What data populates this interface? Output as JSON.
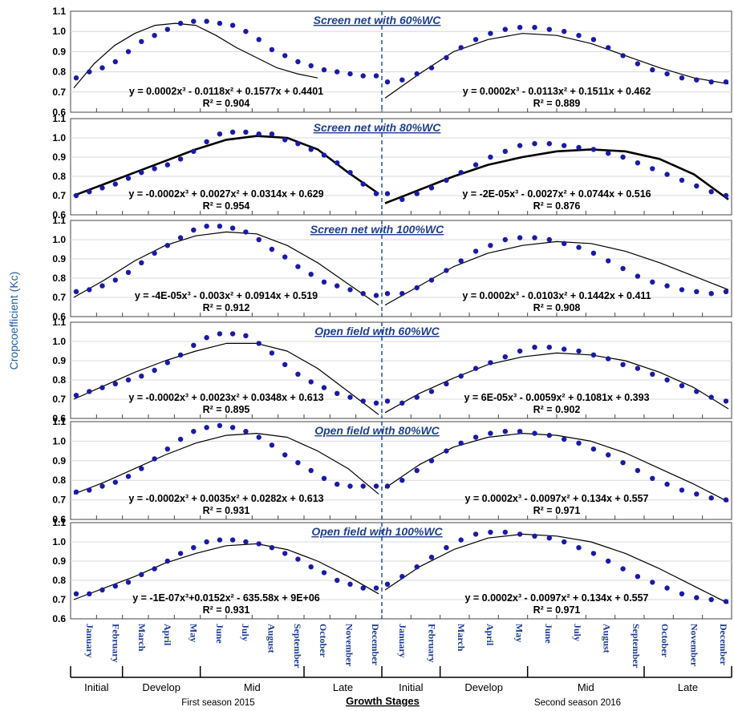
{
  "y_axis_title": "Cropcoefficient (Kc)",
  "x_axis_title": "Growth Stages",
  "season_labels": [
    "First season 2015",
    "Second season 2016"
  ],
  "months": [
    "January",
    "February",
    "March",
    "April",
    "May",
    "June",
    "July",
    "August",
    "September",
    "October",
    "November",
    "December"
  ],
  "stages": [
    {
      "label": "Initial",
      "m0": 0,
      "m1": 2
    },
    {
      "label": "Develop",
      "m0": 2,
      "m1": 5
    },
    {
      "label": "Mid",
      "m0": 5,
      "m1": 9
    },
    {
      "label": "Late",
      "m0": 9,
      "m1": 12
    },
    {
      "label": "Initial",
      "m0": 12,
      "m1": 14
    },
    {
      "label": "Develop",
      "m0": 14,
      "m1": 17
    },
    {
      "label": "Mid",
      "m0": 17,
      "m1": 21
    },
    {
      "label": "Late",
      "m0": 21,
      "m1": 24
    }
  ],
  "colors": {
    "points": "#1a1aa6",
    "axis_title": "#1f5fa8",
    "panel_title": "#1f3f8f",
    "divider": "#2a5db0"
  },
  "chart_data": [
    {
      "type": "scatter",
      "title": "Screen net with 60%WC",
      "ylim": [
        0.6,
        1.1
      ],
      "yticks": [
        0.6,
        0.7,
        0.8,
        0.9,
        1.0,
        1.1
      ],
      "trend_width": 1.2,
      "season1": {
        "points": [
          0.77,
          0.8,
          0.82,
          0.85,
          0.9,
          0.95,
          0.98,
          1.01,
          1.04,
          1.05,
          1.05,
          1.04,
          1.03,
          1.0,
          0.96,
          0.91,
          0.88,
          0.85,
          0.83,
          0.81,
          0.8,
          0.79,
          0.78,
          0.78
        ],
        "trend": [
          [
            0,
            0.72
          ],
          [
            2,
            0.84
          ],
          [
            4,
            0.93
          ],
          [
            6,
            0.99
          ],
          [
            8,
            1.03
          ],
          [
            10,
            1.04
          ],
          [
            12,
            1.03
          ],
          [
            14,
            0.98
          ],
          [
            16,
            0.92
          ],
          [
            18,
            0.87
          ],
          [
            20,
            0.82
          ],
          [
            22,
            0.79
          ],
          [
            24,
            0.77
          ]
        ],
        "equation": "y = 0.0002x³ - 0.0118x² + 0.1577x + 0.4401",
        "r2": "R² = 0.904"
      },
      "season2": {
        "points": [
          0.75,
          0.76,
          0.79,
          0.82,
          0.87,
          0.92,
          0.96,
          0.99,
          1.01,
          1.02,
          1.02,
          1.01,
          1.0,
          0.98,
          0.96,
          0.92,
          0.88,
          0.84,
          0.81,
          0.79,
          0.77,
          0.76,
          0.75,
          0.75
        ],
        "trend": [
          [
            0,
            0.67
          ],
          [
            3,
            0.79
          ],
          [
            6,
            0.9
          ],
          [
            9,
            0.96
          ],
          [
            12,
            0.99
          ],
          [
            15,
            0.98
          ],
          [
            18,
            0.94
          ],
          [
            21,
            0.88
          ],
          [
            24,
            0.82
          ],
          [
            27,
            0.77
          ],
          [
            30,
            0.74
          ]
        ],
        "equation": "y = 0.0002x³ - 0.0113x² + 0.1511x + 0.462",
        "r2": "R² = 0.889"
      }
    },
    {
      "type": "scatter",
      "title": "Screen net with 80%WC",
      "ylim": [
        0.6,
        1.1
      ],
      "yticks": [
        0.6,
        0.7,
        0.8,
        0.9,
        1.0,
        1.1
      ],
      "trend_width": 2.6,
      "season1": {
        "points": [
          0.7,
          0.72,
          0.74,
          0.76,
          0.79,
          0.82,
          0.84,
          0.86,
          0.89,
          0.93,
          0.98,
          1.02,
          1.03,
          1.03,
          1.02,
          1.02,
          0.99,
          0.97,
          0.94,
          0.91,
          0.87,
          0.82,
          0.76,
          0.71
        ],
        "trend": [
          [
            0,
            0.7
          ],
          [
            3,
            0.76
          ],
          [
            6,
            0.82
          ],
          [
            9,
            0.88
          ],
          [
            12,
            0.94
          ],
          [
            15,
            0.99
          ],
          [
            18,
            1.01
          ],
          [
            21,
            1.0
          ],
          [
            24,
            0.94
          ],
          [
            27,
            0.82
          ],
          [
            30,
            0.71
          ]
        ],
        "equation": "y = -0.0002x³ + 0.0027x² + 0.0314x + 0.629",
        "r2": "R² = 0.954"
      },
      "season2": {
        "points": [
          0.71,
          0.68,
          0.71,
          0.74,
          0.78,
          0.82,
          0.86,
          0.9,
          0.93,
          0.96,
          0.97,
          0.97,
          0.96,
          0.95,
          0.94,
          0.92,
          0.9,
          0.87,
          0.84,
          0.81,
          0.78,
          0.75,
          0.72,
          0.7
        ],
        "trend": [
          [
            0,
            0.66
          ],
          [
            3,
            0.73
          ],
          [
            6,
            0.8
          ],
          [
            9,
            0.86
          ],
          [
            12,
            0.9
          ],
          [
            15,
            0.93
          ],
          [
            18,
            0.94
          ],
          [
            21,
            0.93
          ],
          [
            24,
            0.89
          ],
          [
            27,
            0.81
          ],
          [
            30,
            0.68
          ]
        ],
        "equation": "y = -2E-05x³ - 0.0027x² + 0.0744x + 0.516",
        "r2": "R² = 0.876"
      }
    },
    {
      "type": "scatter",
      "title": "Screen net with 100%WC",
      "ylim": [
        0.6,
        1.1
      ],
      "yticks": [
        0.6,
        0.7,
        0.8,
        0.9,
        1.0,
        1.1
      ],
      "trend_width": 1.2,
      "season1": {
        "points": [
          0.73,
          0.74,
          0.76,
          0.79,
          0.83,
          0.88,
          0.93,
          0.97,
          1.01,
          1.05,
          1.07,
          1.07,
          1.06,
          1.04,
          1.0,
          0.95,
          0.91,
          0.86,
          0.82,
          0.78,
          0.76,
          0.74,
          0.72,
          0.71
        ],
        "trend": [
          [
            0,
            0.7
          ],
          [
            3,
            0.79
          ],
          [
            6,
            0.89
          ],
          [
            9,
            0.97
          ],
          [
            12,
            1.02
          ],
          [
            15,
            1.04
          ],
          [
            18,
            1.03
          ],
          [
            21,
            0.97
          ],
          [
            24,
            0.88
          ],
          [
            27,
            0.77
          ],
          [
            30,
            0.66
          ]
        ],
        "equation": "y = -4E-05x³ - 0.003x² + 0.0914x + 0.519",
        "r2": "R² = 0.912"
      },
      "season2": {
        "points": [
          0.72,
          0.72,
          0.75,
          0.79,
          0.84,
          0.89,
          0.94,
          0.97,
          1.0,
          1.01,
          1.01,
          1.0,
          0.98,
          0.96,
          0.93,
          0.89,
          0.85,
          0.81,
          0.78,
          0.76,
          0.74,
          0.73,
          0.72,
          0.73
        ],
        "trend": [
          [
            0,
            0.66
          ],
          [
            3,
            0.76
          ],
          [
            6,
            0.86
          ],
          [
            9,
            0.93
          ],
          [
            12,
            0.97
          ],
          [
            15,
            0.99
          ],
          [
            18,
            0.98
          ],
          [
            21,
            0.94
          ],
          [
            24,
            0.88
          ],
          [
            27,
            0.81
          ],
          [
            30,
            0.74
          ]
        ],
        "equation": "y = 0.0002x³ - 0.0103x² + 0.1442x + 0.411",
        "r2": "R² = 0.908"
      }
    },
    {
      "type": "scatter",
      "title": "Open field with 60%WC",
      "ylim": [
        0.6,
        1.1
      ],
      "yticks": [
        0.6,
        0.7,
        0.8,
        0.9,
        1.0,
        1.1
      ],
      "trend_width": 1.2,
      "season1": {
        "points": [
          0.72,
          0.74,
          0.76,
          0.78,
          0.8,
          0.82,
          0.85,
          0.89,
          0.93,
          0.98,
          1.02,
          1.04,
          1.04,
          1.03,
          0.99,
          0.94,
          0.88,
          0.83,
          0.79,
          0.76,
          0.73,
          0.71,
          0.69,
          0.68
        ],
        "trend": [
          [
            0,
            0.7
          ],
          [
            3,
            0.77
          ],
          [
            6,
            0.84
          ],
          [
            9,
            0.9
          ],
          [
            12,
            0.95
          ],
          [
            15,
            0.99
          ],
          [
            18,
            0.99
          ],
          [
            21,
            0.95
          ],
          [
            24,
            0.86
          ],
          [
            27,
            0.74
          ],
          [
            30,
            0.62
          ]
        ],
        "equation": "y = -0.0002x³ + 0.0023x² + 0.0348x + 0.613",
        "r2": "R² = 0.895"
      },
      "season2": {
        "points": [
          0.69,
          0.68,
          0.71,
          0.74,
          0.78,
          0.82,
          0.86,
          0.89,
          0.92,
          0.95,
          0.97,
          0.97,
          0.96,
          0.95,
          0.93,
          0.91,
          0.88,
          0.86,
          0.83,
          0.8,
          0.77,
          0.74,
          0.71,
          0.69
        ],
        "trend": [
          [
            0,
            0.63
          ],
          [
            3,
            0.73
          ],
          [
            6,
            0.81
          ],
          [
            9,
            0.88
          ],
          [
            12,
            0.92
          ],
          [
            15,
            0.94
          ],
          [
            18,
            0.93
          ],
          [
            21,
            0.9
          ],
          [
            24,
            0.84
          ],
          [
            27,
            0.76
          ],
          [
            30,
            0.65
          ]
        ],
        "equation": "y = 6E-05x³ - 0.0059x² + 0.1081x + 0.393",
        "r2": "R² = 0.902"
      }
    },
    {
      "type": "scatter",
      "title": "Open field  with 80%WC",
      "ylim": [
        0.6,
        1.1
      ],
      "yticks": [
        0.6,
        0.7,
        0.8,
        0.9,
        1.0,
        1.1
      ],
      "trend_width": 1.2,
      "season1": {
        "points": [
          0.74,
          0.75,
          0.77,
          0.79,
          0.82,
          0.86,
          0.91,
          0.96,
          1.01,
          1.05,
          1.07,
          1.08,
          1.07,
          1.05,
          1.02,
          0.98,
          0.93,
          0.89,
          0.85,
          0.81,
          0.78,
          0.77,
          0.77,
          0.77
        ],
        "trend": [
          [
            0,
            0.73
          ],
          [
            3,
            0.79
          ],
          [
            6,
            0.86
          ],
          [
            9,
            0.93
          ],
          [
            12,
            0.99
          ],
          [
            15,
            1.03
          ],
          [
            18,
            1.04
          ],
          [
            21,
            1.02
          ],
          [
            24,
            0.95
          ],
          [
            27,
            0.86
          ],
          [
            30,
            0.73
          ]
        ],
        "equation": "y = -0.0002x³ + 0.0035x² + 0.0282x + 0.613",
        "r2": "R² = 0.931"
      },
      "season2": {
        "points": [
          0.77,
          0.8,
          0.85,
          0.9,
          0.95,
          0.99,
          1.02,
          1.04,
          1.05,
          1.05,
          1.04,
          1.03,
          1.01,
          0.99,
          0.96,
          0.93,
          0.89,
          0.85,
          0.81,
          0.78,
          0.75,
          0.73,
          0.71,
          0.7
        ],
        "trend": [
          [
            0,
            0.76
          ],
          [
            3,
            0.88
          ],
          [
            6,
            0.97
          ],
          [
            9,
            1.02
          ],
          [
            12,
            1.04
          ],
          [
            15,
            1.03
          ],
          [
            18,
            1.0
          ],
          [
            21,
            0.94
          ],
          [
            24,
            0.86
          ],
          [
            27,
            0.78
          ],
          [
            30,
            0.69
          ]
        ],
        "equation": "y = 0.0002x³ - 0.0097x² + 0.134x + 0.557",
        "r2": "R² = 0.971"
      }
    },
    {
      "type": "scatter",
      "title": "Open field with 100%WC",
      "ylim": [
        0.6,
        1.1
      ],
      "yticks": [
        0.6,
        0.7,
        0.8,
        0.9,
        1.0,
        1.1
      ],
      "trend_width": 1.2,
      "season1": {
        "points": [
          0.73,
          0.73,
          0.75,
          0.77,
          0.79,
          0.83,
          0.86,
          0.9,
          0.94,
          0.97,
          1.0,
          1.01,
          1.01,
          1.0,
          0.99,
          0.97,
          0.94,
          0.91,
          0.87,
          0.84,
          0.8,
          0.78,
          0.76,
          0.76
        ],
        "trend": [
          [
            0,
            0.7
          ],
          [
            3,
            0.76
          ],
          [
            6,
            0.82
          ],
          [
            9,
            0.89
          ],
          [
            12,
            0.94
          ],
          [
            15,
            0.98
          ],
          [
            18,
            0.99
          ],
          [
            21,
            0.96
          ],
          [
            24,
            0.9
          ],
          [
            27,
            0.82
          ],
          [
            30,
            0.73
          ]
        ],
        "equation": "y = -1E-07x³+0.0152x² - 635.58x + 9E+06",
        "r2": "R² = 0.931"
      },
      "season2": {
        "points": [
          0.78,
          0.82,
          0.87,
          0.92,
          0.97,
          1.01,
          1.04,
          1.05,
          1.05,
          1.04,
          1.03,
          1.02,
          1.0,
          0.97,
          0.94,
          0.9,
          0.86,
          0.82,
          0.79,
          0.76,
          0.73,
          0.71,
          0.7,
          0.69
        ],
        "trend": [
          [
            0,
            0.75
          ],
          [
            3,
            0.87
          ],
          [
            6,
            0.96
          ],
          [
            9,
            1.02
          ],
          [
            12,
            1.04
          ],
          [
            15,
            1.03
          ],
          [
            18,
            1.0
          ],
          [
            21,
            0.94
          ],
          [
            24,
            0.86
          ],
          [
            27,
            0.77
          ],
          [
            30,
            0.68
          ]
        ],
        "equation": "y = 0.0002x³ - 0.0097x² + 0.134x + 0.557",
        "r2": "R² = 0.971"
      }
    }
  ]
}
